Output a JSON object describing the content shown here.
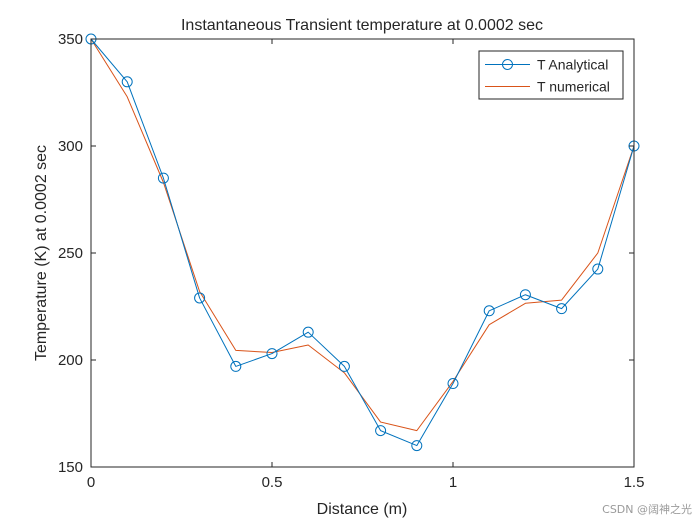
{
  "chart_data": {
    "type": "line",
    "title": "Instantaneous Transient temperature at 0.0002 sec",
    "xlabel": "Distance (m)",
    "ylabel": "Temperature (K) at 0.0002 sec",
    "xlim": [
      0,
      1.5
    ],
    "ylim": [
      150,
      350
    ],
    "xticks": [
      0,
      0.5,
      1,
      1.5
    ],
    "xtick_labels": [
      "0",
      "0.5",
      "1",
      "1.5"
    ],
    "yticks": [
      150,
      200,
      250,
      300,
      350
    ],
    "ytick_labels": [
      "150",
      "200",
      "250",
      "300",
      "350"
    ],
    "legend_position": "top-right",
    "series": [
      {
        "name": "T Analytical",
        "color": "#0072BD",
        "marker": "circle",
        "x": [
          0,
          0.1,
          0.2,
          0.3,
          0.4,
          0.5,
          0.6,
          0.7,
          0.8,
          0.9,
          1.0,
          1.1,
          1.2,
          1.3,
          1.4,
          1.5
        ],
        "y": [
          350,
          330,
          285,
          229,
          197,
          203,
          213,
          197,
          167,
          160,
          189,
          223,
          230.5,
          224,
          242.5,
          300
        ]
      },
      {
        "name": "T numerical",
        "color": "#D95319",
        "marker": "none",
        "x": [
          0,
          0.1,
          0.2,
          0.3,
          0.4,
          0.5,
          0.6,
          0.7,
          0.8,
          0.9,
          1.0,
          1.1,
          1.2,
          1.3,
          1.4,
          1.5
        ],
        "y": [
          350,
          323,
          283,
          232,
          204.5,
          203.5,
          207,
          194,
          171,
          167,
          190,
          216.5,
          226.5,
          228,
          250,
          300
        ]
      }
    ]
  },
  "watermark": "CSDN @阔神之光"
}
